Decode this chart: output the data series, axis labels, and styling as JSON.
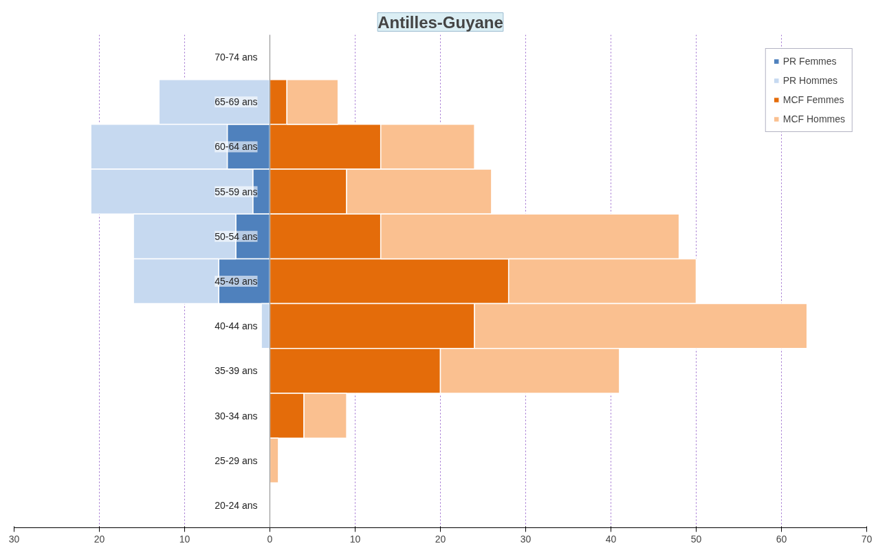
{
  "chart_data": {
    "type": "bar",
    "orientation": "horizontal",
    "stacked": true,
    "title": "Antilles-Guyane",
    "categories": [
      "70-74 ans",
      "65-69 ans",
      "60-64 ans",
      "55-59 ans",
      "50-54 ans",
      "45-49 ans",
      "40-44 ans",
      "35-39 ans",
      "30-34 ans",
      "25-29 ans",
      "20-24 ans"
    ],
    "series": [
      {
        "name": "PR Femmes",
        "color": "#4f81bd",
        "values": [
          0,
          0,
          -5,
          -2,
          -4,
          -6,
          0,
          0,
          0,
          0,
          0
        ]
      },
      {
        "name": "PR Hommes",
        "color": "#c6d9f0",
        "values": [
          0,
          -13,
          -16,
          -19,
          -12,
          -10,
          -1,
          0,
          0,
          0,
          0
        ]
      },
      {
        "name": "MCF Femmes",
        "color": "#e46c0a",
        "values": [
          0,
          2,
          13,
          9,
          13,
          28,
          24,
          20,
          4,
          0,
          0
        ]
      },
      {
        "name": "MCF Hommes",
        "color": "#fac090",
        "values": [
          0,
          6,
          11,
          17,
          35,
          22,
          39,
          21,
          5,
          1,
          0
        ]
      }
    ],
    "xlim": [
      -30,
      70
    ],
    "xticks": [
      {
        "value": -30,
        "label": "30"
      },
      {
        "value": -20,
        "label": "20"
      },
      {
        "value": -10,
        "label": "10"
      },
      0,
      10,
      20,
      30,
      40,
      50,
      60,
      70
    ],
    "grid": "x",
    "legend": "top right"
  }
}
